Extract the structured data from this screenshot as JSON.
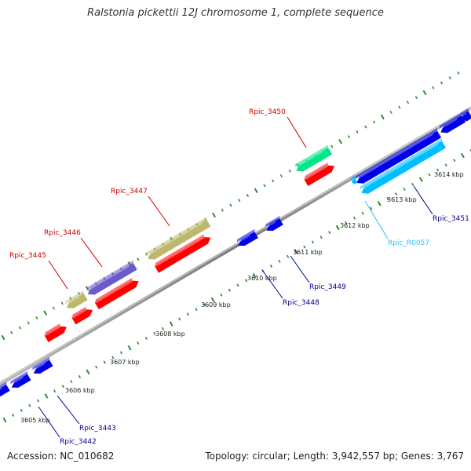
{
  "title": "Ralstonia pickettii 12J chromosome 1, complete sequence",
  "footer": {
    "accession": "Accession: NC_010682",
    "summary": "Topology: circular; Length: 3,942,557 bp; Genes: 3,767"
  },
  "colors": {
    "backbone": "#8a8a8a",
    "tick_dots": "#2e8b2e",
    "red_gene": "#ff0000",
    "blue_gene": "#0000e6",
    "olive_gene": "#bdb76b",
    "purple_gene": "#6a5acd",
    "green_gene": "#00e68a",
    "cyan_gene": "#00bfff",
    "red_label": "#cc0000",
    "blue_label": "#00008b",
    "cyan_label": "#33bbee"
  },
  "scale_labels": [
    "3605 kbp",
    "3606 kbp",
    "3607 kbp",
    "3608 kbp",
    "3609 kbp",
    "3610 kbp",
    "3611 kbp",
    "3612 kbp",
    "3613 kbp",
    "3614 kbp"
  ],
  "gene_labels": [
    {
      "id": "g3445",
      "text": "Rpic_3445",
      "color": "red"
    },
    {
      "id": "g3446",
      "text": "Rpic_3446",
      "color": "red"
    },
    {
      "id": "g3447",
      "text": "Rpic_3447",
      "color": "red"
    },
    {
      "id": "g3450",
      "text": "Rpic_3450",
      "color": "red"
    },
    {
      "id": "g3442",
      "text": "Rpic_3442",
      "color": "blue"
    },
    {
      "id": "g3443",
      "text": "Rpic_3443",
      "color": "blue"
    },
    {
      "id": "g3448",
      "text": "Rpic_3448",
      "color": "blue"
    },
    {
      "id": "g3449",
      "text": "Rpic_3449",
      "color": "blue"
    },
    {
      "id": "g3451",
      "text": "Rpic_3451",
      "color": "blue"
    },
    {
      "id": "gR0057",
      "text": "Rpic_R0057",
      "color": "cyan"
    }
  ]
}
